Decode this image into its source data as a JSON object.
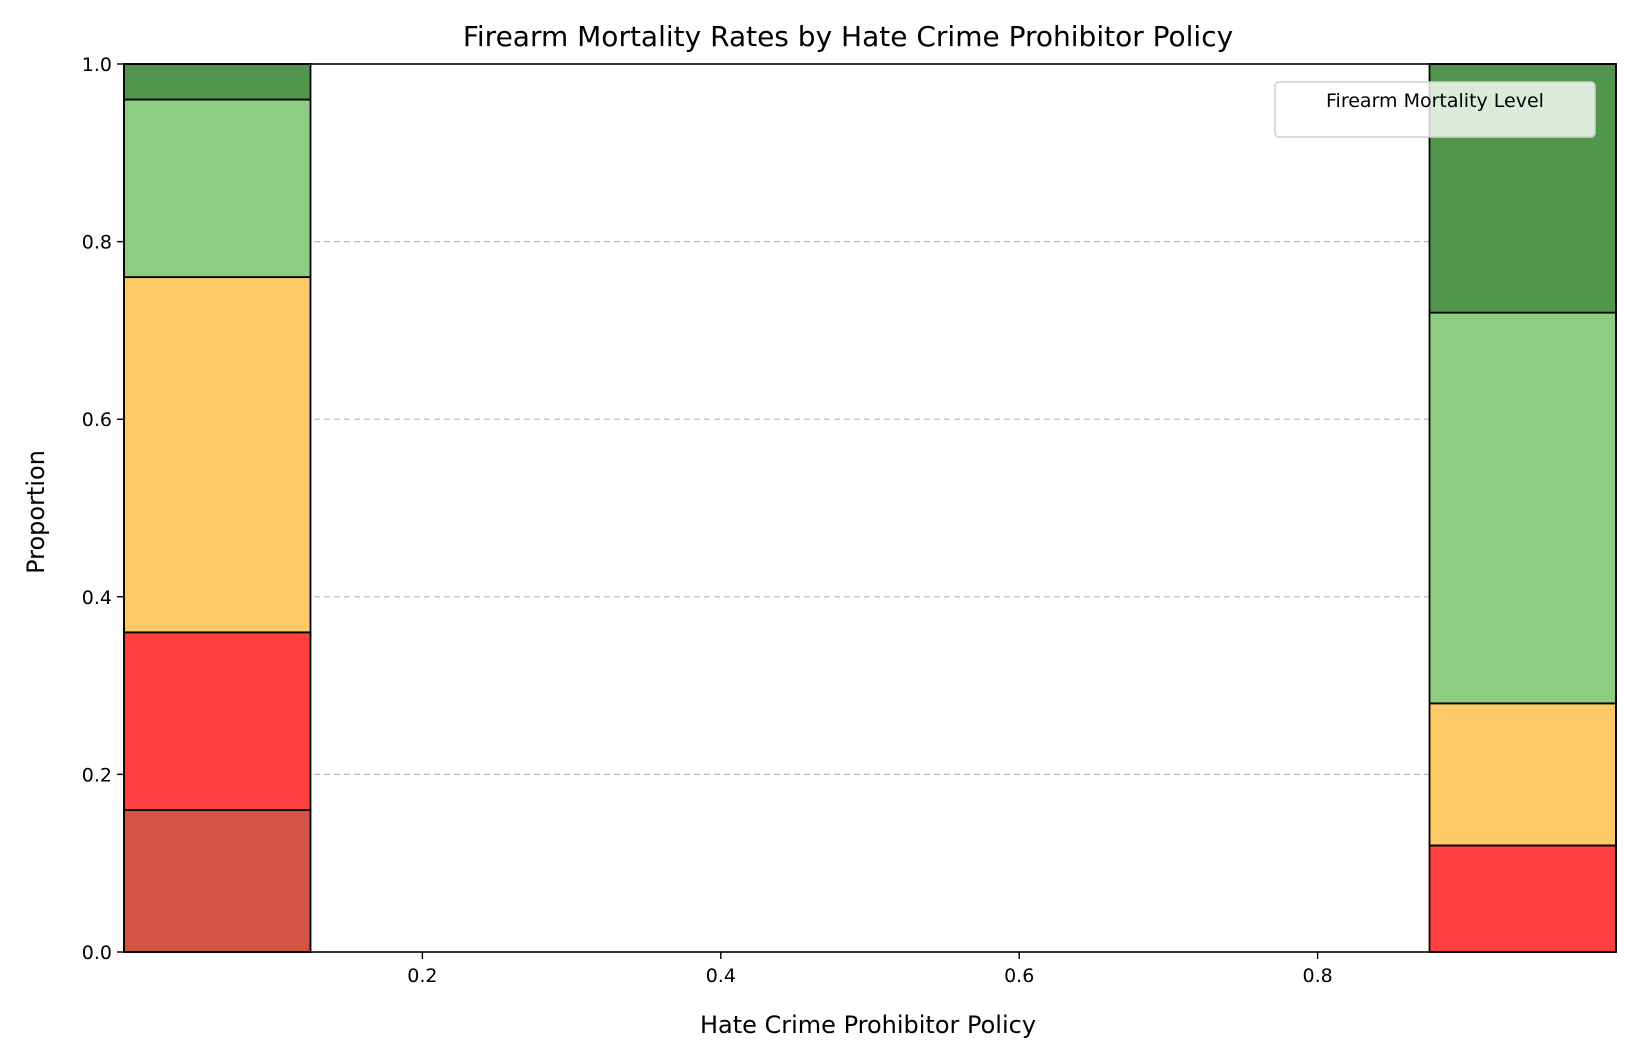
{
  "chart_data": {
    "type": "bar",
    "title": "Firearm Mortality Rates by Hate Crime Prohibitor Policy",
    "xlabel": "Hate Crime Prohibitor Policy",
    "ylabel": "Proportion",
    "xlim": [
      0.0,
      1.0
    ],
    "ylim": [
      0.0,
      1.0
    ],
    "xticks": [
      "0.2",
      "0.4",
      "0.6",
      "0.8"
    ],
    "yticks": [
      "0.0",
      "0.2",
      "0.4",
      "0.6",
      "0.8",
      "1.0"
    ],
    "grid": "y-dashed",
    "legend": {
      "title": "Firearm Mortality Level",
      "placement": "top-right",
      "entries": []
    },
    "bins": [
      {
        "x_range": [
          0.0,
          0.125
        ],
        "segments": [
          {
            "value": 0.16,
            "color": "#d35445"
          },
          {
            "value": 0.2,
            "color": "#ff4040"
          },
          {
            "value": 0.4,
            "color": "#fbc965"
          },
          {
            "value": 0.2,
            "color": "#8ecc81"
          },
          {
            "value": 0.04,
            "color": "#52964e"
          }
        ]
      },
      {
        "x_range": [
          0.875,
          1.0
        ],
        "segments": [
          {
            "value": 0.12,
            "color": "#ff4040"
          },
          {
            "value": 0.16,
            "color": "#fbc965"
          },
          {
            "value": 0.44,
            "color": "#8ecc81"
          },
          {
            "value": 0.28,
            "color": "#52964e"
          }
        ]
      }
    ]
  }
}
